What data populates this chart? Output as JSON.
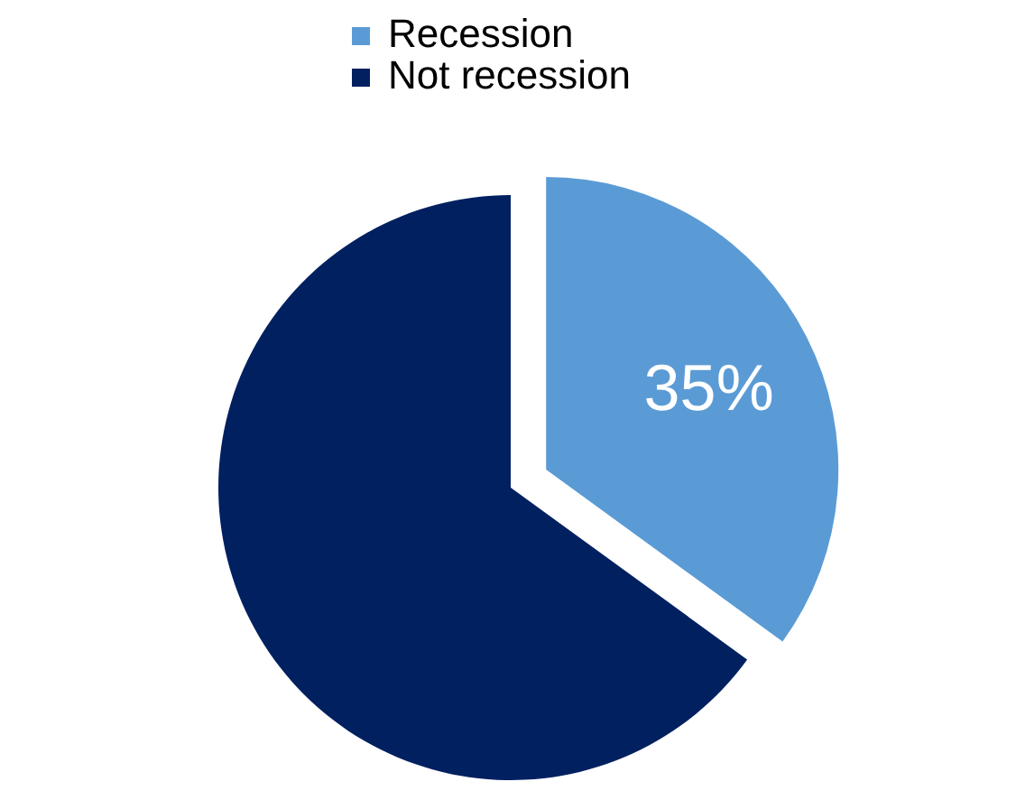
{
  "chart_data": {
    "type": "pie",
    "categories": [
      "Recession",
      "Not recession"
    ],
    "values": [
      35,
      65
    ],
    "colors": [
      "#5b9bd5",
      "#002060"
    ],
    "value_labels": [
      "35%",
      null
    ],
    "legend": "top"
  }
}
